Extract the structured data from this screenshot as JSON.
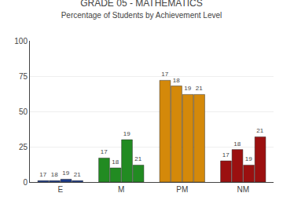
{
  "chart_data": {
    "type": "bar",
    "title": "GRADE 05 - MATHEMATICS",
    "subtitle": "Percentage of Students by Achievement Level",
    "categories": [
      "E",
      "M",
      "PM",
      "NM"
    ],
    "series": [
      {
        "name": "17",
        "values": [
          1,
          17,
          72,
          15
        ],
        "colors": [
          "#1a3a8a",
          "#228B22",
          "#D4890A",
          "#9B1010"
        ]
      },
      {
        "name": "18",
        "values": [
          1,
          10,
          68,
          23
        ],
        "colors": [
          "#1a3a8a",
          "#228B22",
          "#D4890A",
          "#9B1010"
        ]
      },
      {
        "name": "19",
        "values": [
          2,
          30,
          62,
          12
        ],
        "colors": [
          "#1a3a8a",
          "#228B22",
          "#D4890A",
          "#9B1010"
        ]
      },
      {
        "name": "21",
        "values": [
          1,
          12,
          62,
          32
        ],
        "colors": [
          "#1a3a8a",
          "#228B22",
          "#D4890A",
          "#9B1010"
        ]
      }
    ],
    "ylim": [
      0,
      100
    ],
    "yticks": [
      0,
      25,
      50,
      75,
      100
    ],
    "grid": true
  }
}
